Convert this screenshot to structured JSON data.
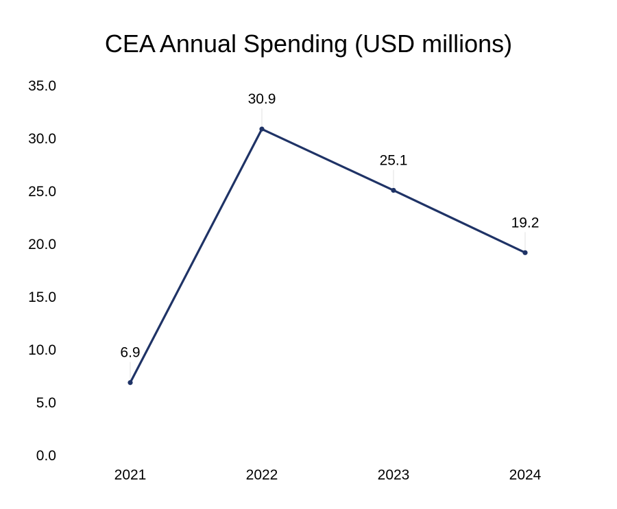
{
  "chart_data": {
    "type": "line",
    "title": "CEA Annual Spending (USD millions)",
    "xlabel": "",
    "ylabel": "",
    "categories": [
      "2021",
      "2022",
      "2023",
      "2024"
    ],
    "series": [
      {
        "name": "CEA Annual Spending",
        "values": [
          6.9,
          30.9,
          25.1,
          19.2
        ],
        "data_labels": [
          "6.9",
          "30.9",
          "25.1",
          "19.2"
        ],
        "color": "#1f3366"
      }
    ],
    "ylim": [
      0,
      35
    ],
    "yticks": [
      "0.0",
      "5.0",
      "10.0",
      "15.0",
      "20.0",
      "25.0",
      "30.0",
      "35.0"
    ],
    "grid": false,
    "legend": "none"
  }
}
